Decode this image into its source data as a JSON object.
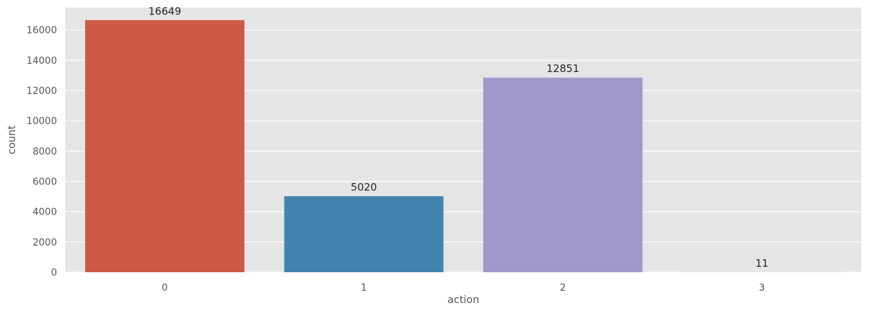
{
  "chart_data": {
    "type": "bar",
    "title": "",
    "xlabel": "action",
    "ylabel": "count",
    "categories": [
      "0",
      "1",
      "2",
      "3"
    ],
    "values": [
      16649,
      5020,
      12851,
      11
    ],
    "data_labels": [
      "16649",
      "5020",
      "12851",
      "11"
    ],
    "colors": [
      "#cc5a47",
      "#4284ad",
      "#9e98cb",
      "#dec172"
    ],
    "ylim": [
      0,
      17481
    ],
    "yticks": [
      0,
      2000,
      4000,
      6000,
      8000,
      10000,
      12000,
      14000,
      16000
    ],
    "ytick_labels": [
      "0",
      "2000",
      "4000",
      "6000",
      "8000",
      "10000",
      "12000",
      "14000",
      "16000"
    ],
    "grid": true,
    "background": "#e5e5e5",
    "grid_color": "#ffffff"
  }
}
